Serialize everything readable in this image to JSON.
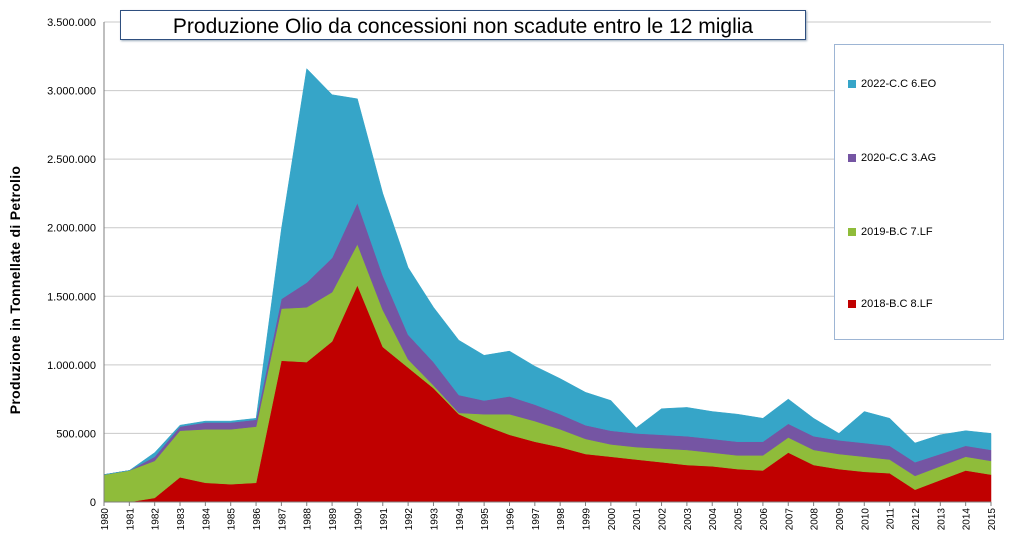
{
  "chart_data": {
    "type": "area",
    "title": "Produzione Olio da concessioni non scadute entro le 12 miglia",
    "ylabel": "Produzione in Tonnellate di Petrolio",
    "xlabel": "",
    "ylim": [
      0,
      3500000
    ],
    "yticks": [
      "0",
      "500.000",
      "1.000.000",
      "1.500.000",
      "2.000.000",
      "2.500.000",
      "3.000.000",
      "3.500.000"
    ],
    "ytick_values": [
      0,
      500000,
      1000000,
      1500000,
      2000000,
      2500000,
      3000000,
      3500000
    ],
    "grid": "horizontal",
    "legend_position": "right",
    "x": [
      "1980",
      "1981",
      "1982",
      "1983",
      "1984",
      "1985",
      "1986",
      "1987",
      "1988",
      "1989",
      "1990",
      "1991",
      "1992",
      "1993",
      "1994",
      "1995",
      "1996",
      "1997",
      "1998",
      "1999",
      "2000",
      "2001",
      "2002",
      "2003",
      "2004",
      "2005",
      "2006",
      "2007",
      "2008",
      "2009",
      "2010",
      "2011",
      "2012",
      "2013",
      "2014",
      "2015"
    ],
    "series": [
      {
        "name": "2018-B.C 8.LF",
        "color": "#c00000",
        "values": [
          0,
          0,
          30000,
          180000,
          140000,
          130000,
          140000,
          1030000,
          1020000,
          1170000,
          1580000,
          1130000,
          980000,
          830000,
          640000,
          560000,
          490000,
          440000,
          400000,
          350000,
          330000,
          310000,
          290000,
          270000,
          260000,
          240000,
          230000,
          360000,
          270000,
          240000,
          220000,
          210000,
          90000,
          160000,
          230000,
          200000
        ]
      },
      {
        "name": "2019-B.C 7.LF",
        "color": "#8fbc3a",
        "values": [
          200000,
          230000,
          270000,
          340000,
          390000,
          400000,
          410000,
          380000,
          400000,
          360000,
          300000,
          270000,
          60000,
          20000,
          10000,
          80000,
          150000,
          150000,
          130000,
          110000,
          90000,
          90000,
          100000,
          110000,
          100000,
          100000,
          110000,
          110000,
          110000,
          110000,
          110000,
          100000,
          100000,
          100000,
          100000,
          100000
        ]
      },
      {
        "name": "2020-C.C 3.AG",
        "color": "#7555a3",
        "values": [
          0,
          0,
          30000,
          30000,
          50000,
          50000,
          50000,
          70000,
          180000,
          250000,
          300000,
          250000,
          180000,
          170000,
          130000,
          100000,
          130000,
          120000,
          110000,
          100000,
          100000,
          100000,
          100000,
          100000,
          100000,
          100000,
          100000,
          100000,
          100000,
          100000,
          100000,
          100000,
          100000,
          90000,
          80000,
          80000
        ]
      },
      {
        "name": "2022-C.C 6.EO",
        "color": "#36a5c8",
        "values": [
          0,
          0,
          30000,
          10000,
          10000,
          10000,
          10000,
          510000,
          1560000,
          1190000,
          760000,
          600000,
          490000,
          400000,
          400000,
          330000,
          330000,
          280000,
          260000,
          240000,
          220000,
          40000,
          190000,
          210000,
          200000,
          200000,
          170000,
          180000,
          130000,
          50000,
          230000,
          200000,
          140000,
          140000,
          110000,
          120000
        ]
      }
    ]
  }
}
